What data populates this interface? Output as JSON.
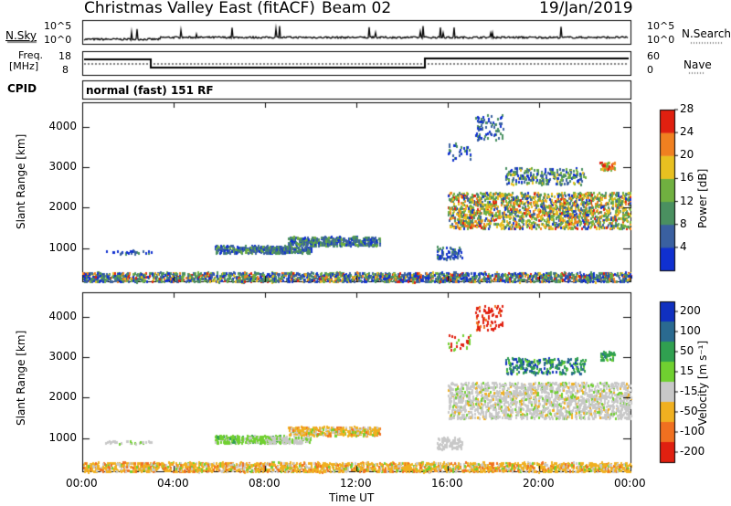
{
  "header": {
    "station": "Christmas Valley East (fitACF)",
    "beam": "Beam 02",
    "date": "19/Jan/2019"
  },
  "panels": {
    "nsky_label": "N.Sky",
    "nsearch_label": "N.Search",
    "noise_ticks": [
      "10^5",
      "10^0"
    ],
    "freq_label_1": "Freq.",
    "freq_label_2": "[MHz]",
    "freq_ticks": [
      "18",
      "8"
    ],
    "nave_label": "Nave",
    "nave_ticks": [
      "60",
      "0"
    ],
    "cpid_label": "CPID",
    "cpid_value": "normal (fast) 151 RF"
  },
  "chart_data": [
    {
      "type": "heatmap",
      "name": "power",
      "ylabel": "Slant Range [km]",
      "xlabel": "",
      "x_ticks": [
        "00:00",
        "04:00",
        "08:00",
        "12:00",
        "16:00",
        "20:00",
        "00:00"
      ],
      "y_ticks": [
        1000,
        2000,
        3000,
        4000
      ],
      "xlim_hours": [
        0,
        24
      ],
      "ylim_km": [
        180,
        4600
      ],
      "colorbar": {
        "label": "Power [dB]",
        "ticks": [
          4,
          8,
          12,
          16,
          20,
          24,
          28
        ],
        "colors": [
          "#1030d0",
          "#3a60a0",
          "#4a9060",
          "#70b040",
          "#e8c020",
          "#f08020",
          "#e02010"
        ]
      }
    },
    {
      "type": "heatmap",
      "name": "velocity",
      "ylabel": "Slant Range [km]",
      "xlabel": "Time UT",
      "x_ticks": [
        "00:00",
        "04:00",
        "08:00",
        "12:00",
        "16:00",
        "20:00",
        "00:00"
      ],
      "y_ticks": [
        1000,
        2000,
        3000,
        4000
      ],
      "xlim_hours": [
        0,
        24
      ],
      "ylim_km": [
        180,
        4600
      ],
      "colorbar": {
        "label": "Velocity [m s⁻¹]",
        "ticks": [
          "200",
          "100",
          "50",
          "15",
          "-15",
          "-50",
          "-100",
          "-200"
        ],
        "colors": [
          "#1030c0",
          "#2a6a90",
          "#30a050",
          "#70d030",
          "#c8c8c8",
          "#f0b020",
          "#f07020",
          "#e02010"
        ]
      }
    }
  ]
}
